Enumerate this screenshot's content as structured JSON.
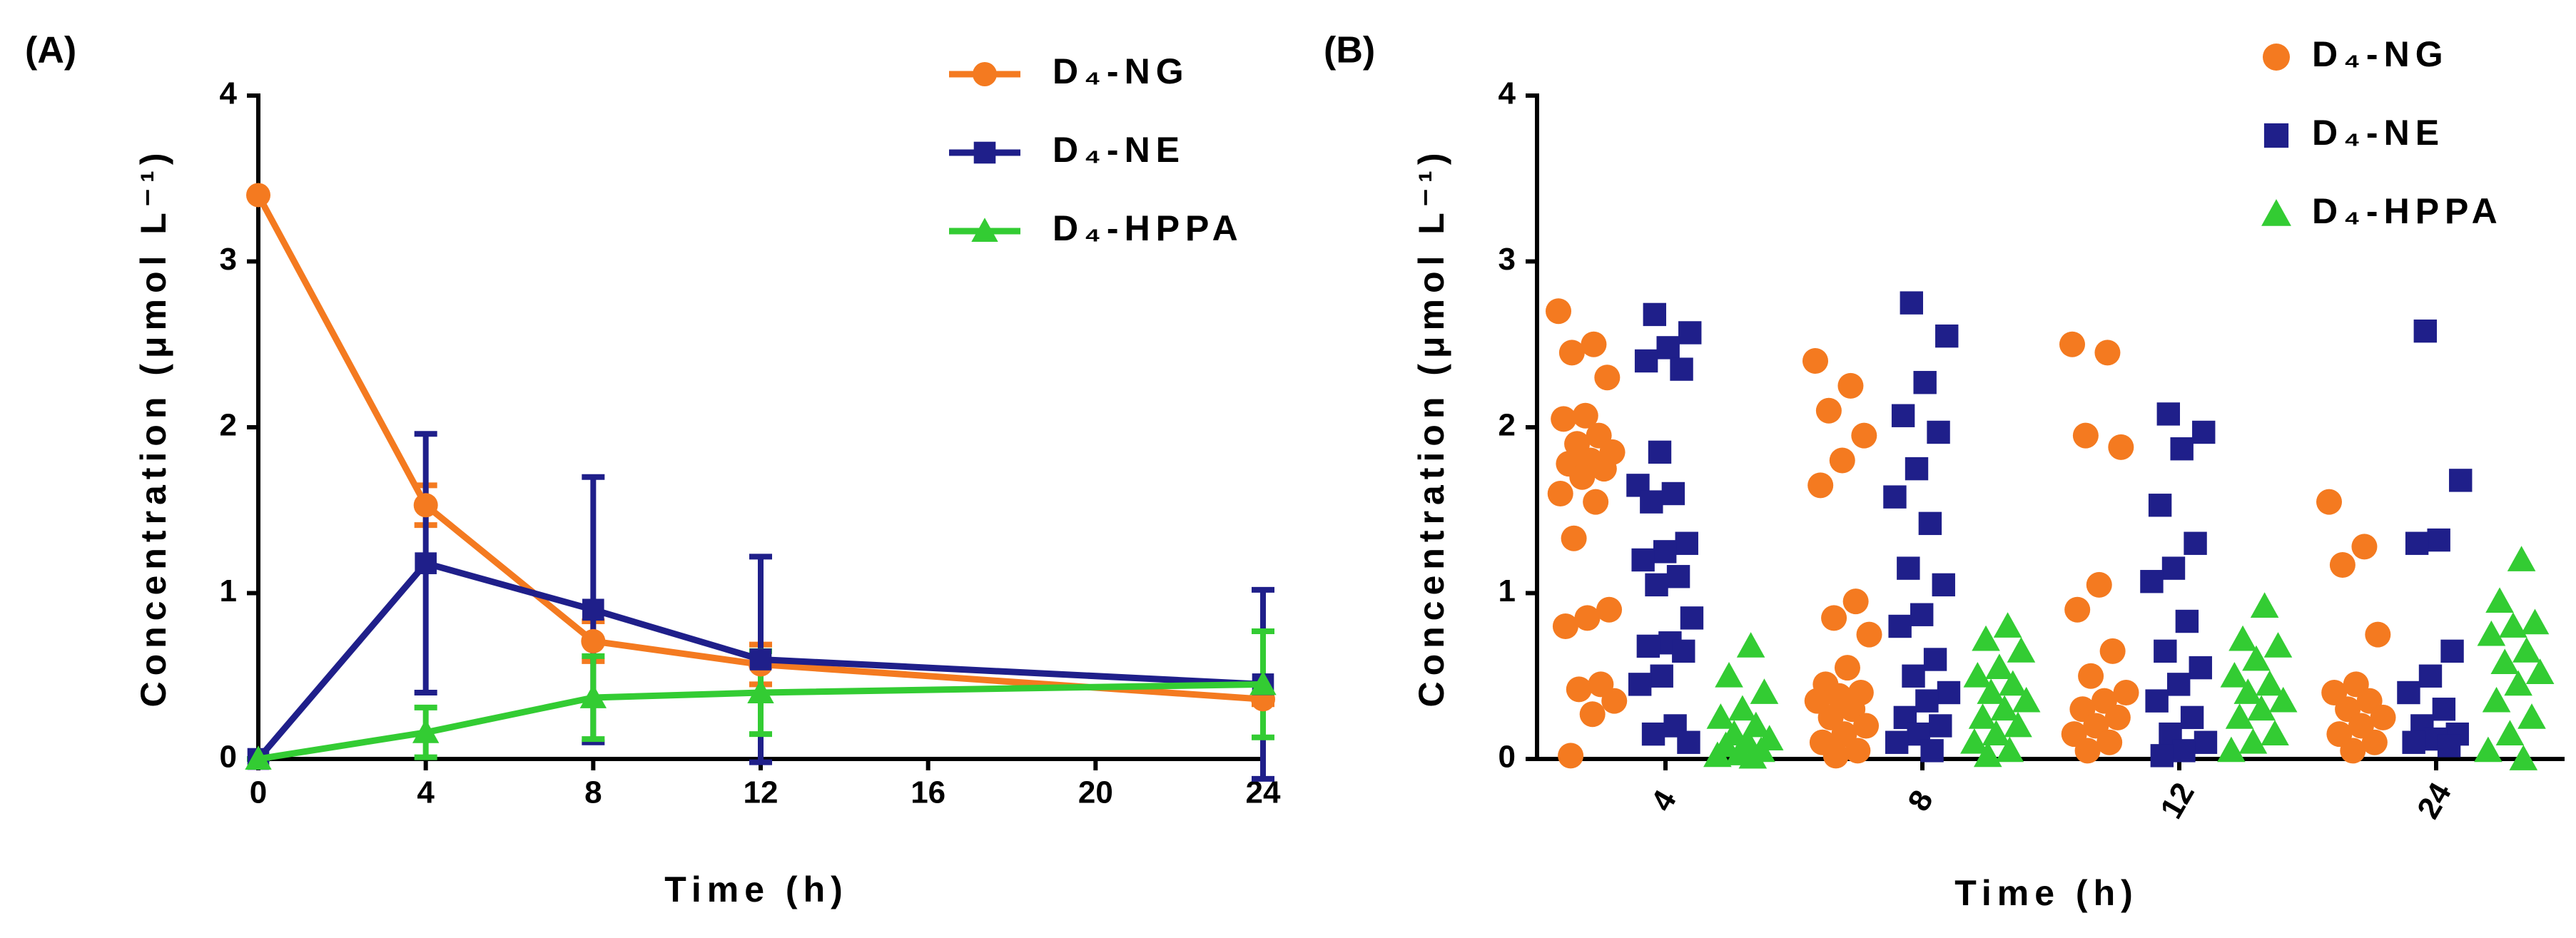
{
  "chart_data": [
    {
      "type": "line",
      "label": "(A)",
      "x_label": "Time (h)",
      "y_label": "Concentration (μmol L⁻¹)",
      "x": [
        0,
        4,
        8,
        12,
        24
      ],
      "xlim": [
        0,
        24
      ],
      "xticks": [
        0,
        4,
        8,
        12,
        16,
        20,
        24
      ],
      "ylim": [
        0,
        4
      ],
      "yticks": [
        0,
        1,
        2,
        3,
        4
      ],
      "grid": false,
      "legend": "top-right",
      "series": [
        {
          "name": "D₄-NG",
          "color": "#f47a20",
          "marker": "circle",
          "values": [
            3.4,
            1.53,
            0.71,
            0.57,
            0.36
          ],
          "errors": [
            0,
            0.12,
            0.12,
            0.12,
            0.03
          ]
        },
        {
          "name": "D₄-NE",
          "color": "#1f1f8a",
          "marker": "square",
          "values": [
            0,
            1.18,
            0.9,
            0.6,
            0.45
          ],
          "errors": [
            0,
            0.78,
            0.8,
            0.62,
            0.57
          ]
        },
        {
          "name": "D₄-HPPA",
          "color": "#33cc33",
          "marker": "triangle",
          "values": [
            0,
            0.16,
            0.37,
            0.4,
            0.45
          ],
          "errors": [
            0,
            0.15,
            0.25,
            0.25,
            0.32
          ]
        }
      ]
    },
    {
      "type": "dot",
      "label": "(B)",
      "x_label": "Time (h)",
      "y_label": "Concentration (μmol L⁻¹)",
      "categories": [
        "4",
        "8",
        "12",
        "24"
      ],
      "ylim": [
        0,
        4
      ],
      "yticks": [
        0,
        1,
        2,
        3,
        4
      ],
      "grid": false,
      "legend": "top-right",
      "series": [
        {
          "name": "D₄-NG",
          "color": "#f47a20",
          "marker": "circle",
          "values": [
            [
              2.7,
              2.5,
              2.45,
              2.3,
              2.07,
              2.05,
              1.95,
              1.9,
              1.85,
              1.8,
              1.78,
              1.75,
              1.7,
              1.6,
              1.55,
              1.33,
              0.9,
              0.85,
              0.8,
              0.45,
              0.42,
              0.35,
              0.27,
              0.02
            ],
            [
              2.4,
              2.25,
              2.1,
              1.95,
              1.8,
              1.65,
              0.95,
              0.85,
              0.75,
              0.55,
              0.45,
              0.4,
              0.38,
              0.35,
              0.3,
              0.25,
              0.2,
              0.15,
              0.1,
              0.05,
              0.02
            ],
            [
              2.5,
              2.45,
              1.95,
              1.88,
              1.05,
              0.9,
              0.65,
              0.5,
              0.4,
              0.35,
              0.3,
              0.25,
              0.2,
              0.15,
              0.1,
              0.05
            ],
            [
              1.55,
              1.28,
              1.17,
              0.75,
              0.45,
              0.4,
              0.35,
              0.3,
              0.25,
              0.2,
              0.15,
              0.1,
              0.05
            ]
          ]
        },
        {
          "name": "D₄-NE",
          "color": "#1f1f8a",
          "marker": "square",
          "values": [
            [
              2.68,
              2.57,
              2.48,
              2.4,
              2.35,
              1.85,
              1.65,
              1.6,
              1.55,
              1.3,
              1.25,
              1.2,
              1.1,
              1.05,
              0.85,
              0.7,
              0.68,
              0.65,
              0.5,
              0.45,
              0.2,
              0.15,
              0.1
            ],
            [
              2.75,
              2.55,
              2.27,
              2.07,
              1.97,
              1.75,
              1.58,
              1.42,
              1.15,
              1.05,
              0.87,
              0.8,
              0.6,
              0.5,
              0.4,
              0.35,
              0.25,
              0.2,
              0.15,
              0.1,
              0.05
            ],
            [
              2.08,
              1.97,
              1.87,
              1.53,
              1.3,
              1.15,
              1.07,
              0.83,
              0.65,
              0.55,
              0.45,
              0.35,
              0.25,
              0.15,
              0.1,
              0.05,
              0.02
            ],
            [
              2.58,
              1.68,
              1.32,
              1.3,
              0.65,
              0.5,
              0.4,
              0.3,
              0.2,
              0.15,
              0.12,
              0.1,
              0.08
            ]
          ]
        },
        {
          "name": "D₄-HPPA",
          "color": "#33cc33",
          "marker": "triangle",
          "values": [
            [
              0.68,
              0.5,
              0.4,
              0.3,
              0.25,
              0.2,
              0.15,
              0.12,
              0.1,
              0.08,
              0.05,
              0.03,
              0.02,
              0.01
            ],
            [
              0.8,
              0.72,
              0.65,
              0.55,
              0.5,
              0.45,
              0.4,
              0.35,
              0.3,
              0.25,
              0.2,
              0.15,
              0.1,
              0.05,
              0.02
            ],
            [
              0.92,
              0.72,
              0.68,
              0.6,
              0.5,
              0.45,
              0.4,
              0.35,
              0.3,
              0.25,
              0.15,
              0.1,
              0.05
            ],
            [
              1.2,
              0.95,
              0.82,
              0.8,
              0.75,
              0.65,
              0.58,
              0.52,
              0.45,
              0.35,
              0.25,
              0.15,
              0.05,
              0.0
            ]
          ]
        }
      ]
    }
  ]
}
